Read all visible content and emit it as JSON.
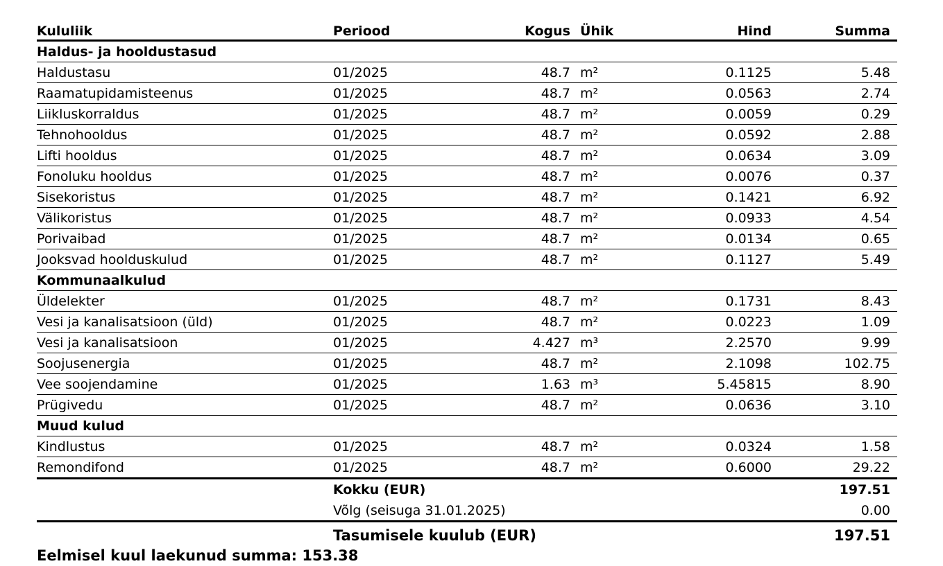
{
  "table": {
    "header": [
      "Kululiik",
      "Periood",
      "Kogus",
      "Ühik",
      "Hind",
      "Summa"
    ],
    "sections": [
      {
        "title": "Haldus- ja hooldustasud",
        "rows": [
          [
            "Haldustasu",
            "01/2025",
            "48.7",
            "m²",
            "0.1125",
            "5.48"
          ],
          [
            "Raamatupidamisteenus",
            "01/2025",
            "48.7",
            "m²",
            "0.0563",
            "2.74"
          ],
          [
            "Liikluskorraldus",
            "01/2025",
            "48.7",
            "m²",
            "0.0059",
            "0.29"
          ],
          [
            "Tehnohooldus",
            "01/2025",
            "48.7",
            "m²",
            "0.0592",
            "2.88"
          ],
          [
            "Lifti hooldus",
            "01/2025",
            "48.7",
            "m²",
            "0.0634",
            "3.09"
          ],
          [
            "Fonoluku hooldus",
            "01/2025",
            "48.7",
            "m²",
            "0.0076",
            "0.37"
          ],
          [
            "Sisekoristus",
            "01/2025",
            "48.7",
            "m²",
            "0.1421",
            "6.92"
          ],
          [
            "Välikoristus",
            "01/2025",
            "48.7",
            "m²",
            "0.0933",
            "4.54"
          ],
          [
            "Porivaibad",
            "01/2025",
            "48.7",
            "m²",
            "0.0134",
            "0.65"
          ],
          [
            "Jooksvad hoolduskulud",
            "01/2025",
            "48.7",
            "m²",
            "0.1127",
            "5.49"
          ]
        ]
      },
      {
        "title": "Kommunaalkulud",
        "rows": [
          [
            "Üldelekter",
            "01/2025",
            "48.7",
            "m²",
            "0.1731",
            "8.43"
          ],
          [
            "Vesi ja kanalisatsioon (üld)",
            "01/2025",
            "48.7",
            "m²",
            "0.0223",
            "1.09"
          ],
          [
            "Vesi ja kanalisatsioon",
            "01/2025",
            "4.427",
            "m³",
            "2.2570",
            "9.99"
          ],
          [
            "Soojusenergia",
            "01/2025",
            "48.7",
            "m²",
            "2.1098",
            "102.75"
          ],
          [
            "Vee soojendamine",
            "01/2025",
            "1.63",
            "m³",
            "5.45815",
            "8.90"
          ],
          [
            "Prügivedu",
            "01/2025",
            "48.7",
            "m²",
            "0.0636",
            "3.10"
          ]
        ]
      },
      {
        "title": "Muud kulud",
        "rows": [
          [
            "Kindlustus",
            "01/2025",
            "48.7",
            "m²",
            "0.0324",
            "1.58"
          ],
          [
            "Remondifond",
            "01/2025",
            "48.7",
            "m²",
            "0.6000",
            "29.22"
          ]
        ]
      }
    ]
  },
  "totals": {
    "total_label": "Kokku (EUR)",
    "total": "197.51",
    "debt_label": "Võlg (seisuga 31.01.2025)",
    "debt": "0.00",
    "due_label": "Tasumisele kuulub (EUR)",
    "due": "197.51"
  },
  "footer": "Eelmisel kuul laekunud summa: 153.38"
}
